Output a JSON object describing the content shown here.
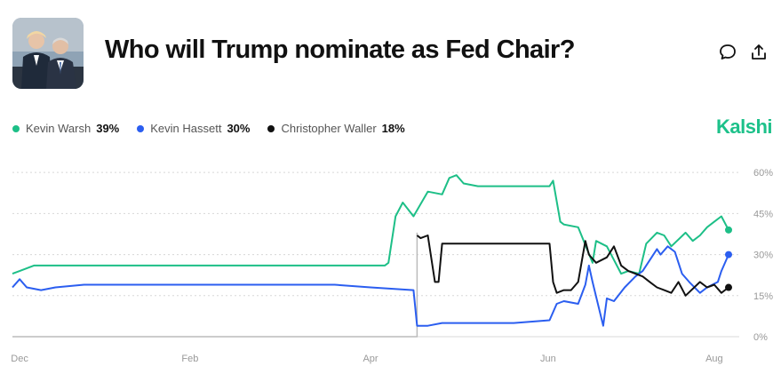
{
  "header": {
    "title": "Who will Trump nominate as Fed Chair?",
    "comment_icon": "comment-icon",
    "share_icon": "share-icon"
  },
  "brand": "Kalshi",
  "legend": [
    {
      "name": "Kevin Warsh",
      "value": "39%",
      "color": "#1dbf87"
    },
    {
      "name": "Kevin Hassett",
      "value": "30%",
      "color": "#2b5ef0"
    },
    {
      "name": "Christopher Waller",
      "value": "18%",
      "color": "#111111"
    }
  ],
  "chart_data": {
    "type": "line",
    "x_tick_labels": [
      "Dec",
      "Feb",
      "Apr",
      "Jun",
      "Aug"
    ],
    "y_tick_labels": [
      "0%",
      "15%",
      "30%",
      "45%",
      "60%"
    ],
    "ylim": [
      0,
      62
    ],
    "grid": true,
    "legend_position": "top-left",
    "x_note": "x values are fractions of the visible time span (0 = start of Dec, 1 = early Aug)",
    "series": [
      {
        "name": "Kevin Warsh",
        "color": "#1dbf87",
        "x": [
          0.0,
          0.01,
          0.03,
          0.07,
          0.1,
          0.15,
          0.2,
          0.25,
          0.3,
          0.33,
          0.36,
          0.4,
          0.45,
          0.5,
          0.52,
          0.525,
          0.535,
          0.545,
          0.56,
          0.58,
          0.6,
          0.61,
          0.62,
          0.63,
          0.65,
          0.7,
          0.75,
          0.755,
          0.765,
          0.77,
          0.79,
          0.81,
          0.815,
          0.83,
          0.85,
          0.86,
          0.875,
          0.885,
          0.9,
          0.91,
          0.92,
          0.94,
          0.95,
          0.96,
          0.97,
          0.98,
          0.99,
          1.0
        ],
        "y": [
          23,
          24,
          26,
          26,
          26,
          26,
          26,
          26,
          26,
          26,
          26,
          26,
          26,
          26,
          26,
          27,
          44,
          49,
          44,
          53,
          52,
          58,
          59,
          56,
          55,
          55,
          55,
          57,
          42,
          41,
          40,
          27,
          35,
          33,
          23,
          24,
          23,
          34,
          38,
          37,
          33,
          38,
          35,
          37,
          40,
          42,
          44,
          39
        ]
      },
      {
        "name": "Kevin Hassett",
        "color": "#2b5ef0",
        "x": [
          0.0,
          0.01,
          0.02,
          0.04,
          0.06,
          0.1,
          0.15,
          0.2,
          0.25,
          0.3,
          0.35,
          0.4,
          0.45,
          0.5,
          0.56,
          0.565,
          0.58,
          0.6,
          0.65,
          0.7,
          0.75,
          0.76,
          0.77,
          0.79,
          0.8,
          0.805,
          0.81,
          0.825,
          0.83,
          0.84,
          0.855,
          0.87,
          0.88,
          0.9,
          0.905,
          0.915,
          0.925,
          0.935,
          0.945,
          0.96,
          0.97,
          0.985,
          0.99,
          1.0
        ],
        "y": [
          18,
          21,
          18,
          17,
          18,
          19,
          19,
          19,
          19,
          19,
          19,
          19,
          19,
          18,
          17,
          4,
          4,
          5,
          5,
          5,
          6,
          12,
          13,
          12,
          19,
          26,
          20,
          4,
          14,
          13,
          18,
          22,
          24,
          32,
          30,
          33,
          31,
          23,
          20,
          16,
          18,
          20,
          24,
          30
        ]
      },
      {
        "name": "Christopher Waller",
        "color": "#111111",
        "x": [
          0.565,
          0.57,
          0.58,
          0.59,
          0.595,
          0.6,
          0.61,
          0.65,
          0.7,
          0.75,
          0.755,
          0.76,
          0.77,
          0.78,
          0.79,
          0.8,
          0.805,
          0.815,
          0.83,
          0.84,
          0.85,
          0.86,
          0.88,
          0.89,
          0.9,
          0.91,
          0.92,
          0.93,
          0.94,
          0.96,
          0.97,
          0.98,
          0.99,
          1.0
        ],
        "y": [
          37,
          36,
          37,
          20,
          20,
          34,
          34,
          34,
          34,
          34,
          20,
          16,
          17,
          17,
          20,
          35,
          30,
          27,
          29,
          33,
          26,
          24,
          22,
          20,
          18,
          17,
          16,
          20,
          15,
          20,
          18,
          19,
          16,
          18
        ]
      },
      {
        "name": "",
        "color": "#bbbbbb",
        "x": [
          0.0,
          0.565,
          0.565
        ],
        "y": [
          0,
          0,
          38
        ]
      }
    ]
  }
}
